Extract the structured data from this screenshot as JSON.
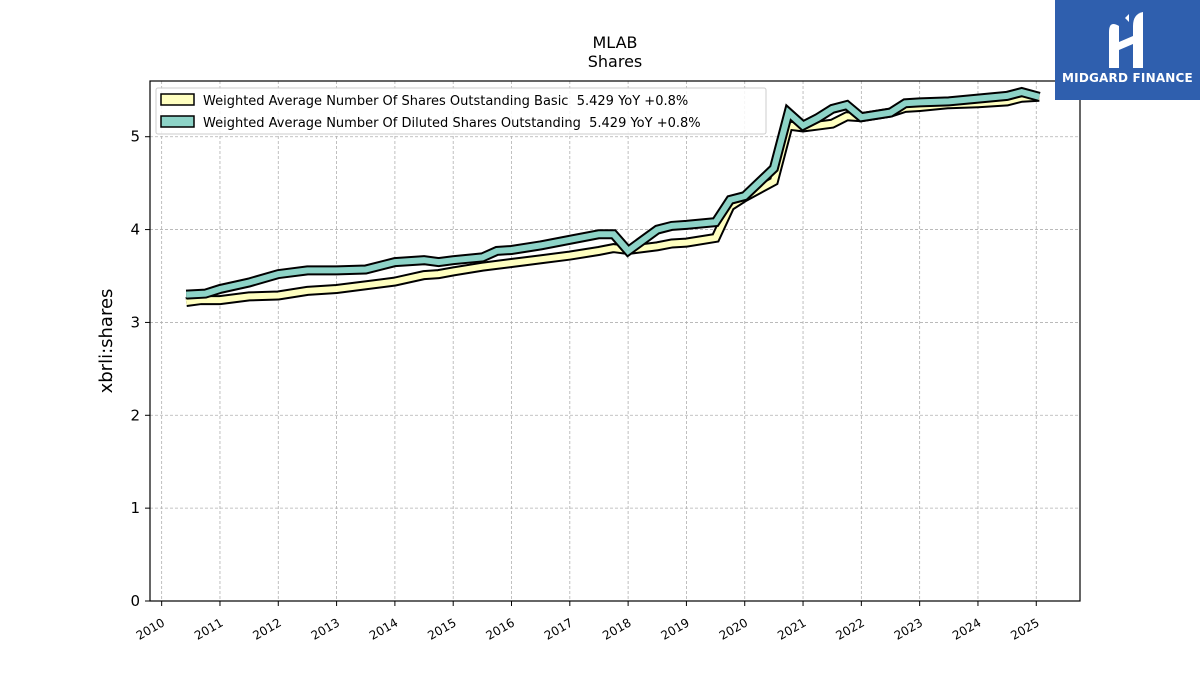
{
  "chart_data": {
    "type": "line",
    "title": "MLAB",
    "subtitle": "Shares",
    "xlabel": "",
    "ylabel": "xbrli:shares",
    "xlim": [
      2009.8,
      2025.75
    ],
    "ylim": [
      0,
      5.6
    ],
    "x_ticks": [
      "2010",
      "2011",
      "2012",
      "2013",
      "2014",
      "2015",
      "2016",
      "2017",
      "2018",
      "2019",
      "2020",
      "2021",
      "2022",
      "2023",
      "2024",
      "2025"
    ],
    "y_ticks": [
      "0",
      "1",
      "2",
      "3",
      "4",
      "5"
    ],
    "grid": true,
    "legend_position": "top-left",
    "series": [
      {
        "name": "Weighted Average Number Of Shares Outstanding Basic  5.429 YoY +0.8%",
        "color": "#ffffc0",
        "points": [
          [
            2010.42,
            3.22
          ],
          [
            2010.67,
            3.24
          ],
          [
            2011.0,
            3.24
          ],
          [
            2011.5,
            3.28
          ],
          [
            2012.0,
            3.29
          ],
          [
            2012.5,
            3.34
          ],
          [
            2013.0,
            3.36
          ],
          [
            2013.5,
            3.4
          ],
          [
            2014.0,
            3.44
          ],
          [
            2014.5,
            3.51
          ],
          [
            2014.75,
            3.52
          ],
          [
            2015.0,
            3.55
          ],
          [
            2015.5,
            3.6
          ],
          [
            2016.0,
            3.64
          ],
          [
            2016.5,
            3.68
          ],
          [
            2017.0,
            3.72
          ],
          [
            2017.5,
            3.77
          ],
          [
            2017.75,
            3.8
          ],
          [
            2018.0,
            3.78
          ],
          [
            2018.5,
            3.82
          ],
          [
            2018.75,
            3.85
          ],
          [
            2019.0,
            3.86
          ],
          [
            2019.5,
            3.91
          ],
          [
            2019.75,
            4.25
          ],
          [
            2020.0,
            4.35
          ],
          [
            2020.5,
            4.52
          ],
          [
            2020.75,
            5.12
          ],
          [
            2021.0,
            5.1
          ],
          [
            2021.25,
            5.12
          ],
          [
            2021.5,
            5.14
          ],
          [
            2021.75,
            5.22
          ],
          [
            2022.0,
            5.21
          ],
          [
            2022.5,
            5.26
          ],
          [
            2022.75,
            5.31
          ],
          [
            2023.0,
            5.32
          ],
          [
            2023.5,
            5.35
          ],
          [
            2024.0,
            5.36
          ],
          [
            2024.5,
            5.38
          ],
          [
            2024.75,
            5.42
          ],
          [
            2025.05,
            5.43
          ]
        ]
      },
      {
        "name": "Weighted Average Number Of Diluted Shares Outstanding  5.429 YoY +0.8%",
        "color": "#8dd3c7",
        "points": [
          [
            2010.42,
            3.3
          ],
          [
            2010.75,
            3.31
          ],
          [
            2011.0,
            3.36
          ],
          [
            2011.5,
            3.43
          ],
          [
            2012.0,
            3.52
          ],
          [
            2012.5,
            3.56
          ],
          [
            2013.0,
            3.56
          ],
          [
            2013.5,
            3.57
          ],
          [
            2014.0,
            3.65
          ],
          [
            2014.5,
            3.67
          ],
          [
            2014.75,
            3.65
          ],
          [
            2015.0,
            3.67
          ],
          [
            2015.5,
            3.7
          ],
          [
            2015.75,
            3.77
          ],
          [
            2016.0,
            3.78
          ],
          [
            2016.5,
            3.83
          ],
          [
            2017.0,
            3.89
          ],
          [
            2017.5,
            3.95
          ],
          [
            2017.75,
            3.95
          ],
          [
            2018.0,
            3.77
          ],
          [
            2018.5,
            4.0
          ],
          [
            2018.75,
            4.04
          ],
          [
            2019.0,
            4.05
          ],
          [
            2019.5,
            4.08
          ],
          [
            2019.75,
            4.32
          ],
          [
            2020.0,
            4.36
          ],
          [
            2020.5,
            4.66
          ],
          [
            2020.75,
            5.26
          ],
          [
            2021.0,
            5.12
          ],
          [
            2021.25,
            5.2
          ],
          [
            2021.5,
            5.3
          ],
          [
            2021.75,
            5.34
          ],
          [
            2022.0,
            5.21
          ],
          [
            2022.5,
            5.26
          ],
          [
            2022.75,
            5.36
          ],
          [
            2023.0,
            5.37
          ],
          [
            2023.5,
            5.38
          ],
          [
            2024.0,
            5.41
          ],
          [
            2024.5,
            5.44
          ],
          [
            2024.75,
            5.48
          ],
          [
            2025.05,
            5.43
          ]
        ]
      }
    ]
  },
  "logo": {
    "text": "MIDGARD FINANCE"
  }
}
